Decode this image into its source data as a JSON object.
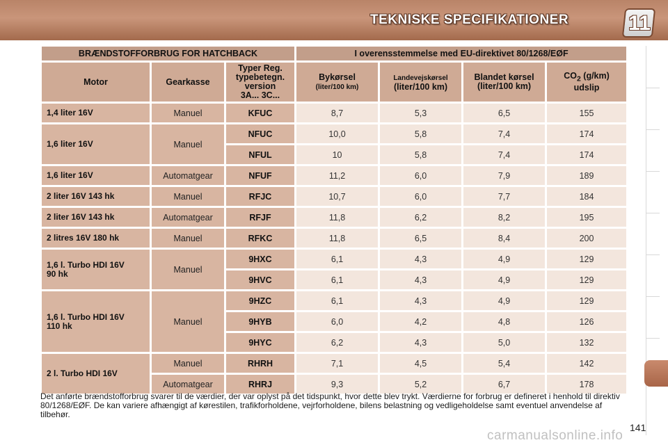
{
  "header": {
    "title": "TEKNISKE SPECIFIKATIONER",
    "chapter": "11"
  },
  "table": {
    "title_left": "BRÆNDSTOFFORBRUG FOR HATCHBACK",
    "title_right": "I overensstemmelse med EU-direktivet 80/1268/EØF",
    "col_motor": "Motor",
    "col_gear": "Gearkasse",
    "col_type": [
      "Typer Reg.",
      "typebetegn.",
      "version",
      "3A... 3C..."
    ],
    "col_city": "Bykørsel",
    "col_city_unit": "(liter/100 km)",
    "col_road": "Landevejskørsel",
    "col_road_unit": "(liter/100 km)",
    "col_mixed": "Blandet kørsel",
    "col_mixed_unit": "(liter/100 km)",
    "col_co2_a": "CO",
    "col_co2_sub": "2",
    "col_co2_b": " (g/km)",
    "col_co2_unit": "udslip",
    "groups": [
      {
        "motor": [
          "1,4 liter 16V"
        ],
        "gears": [
          {
            "label": "Manuel",
            "rows": [
              [
                "KFUC",
                "8,7",
                "5,3",
                "6,5",
                "155"
              ]
            ]
          }
        ]
      },
      {
        "motor": [
          "1,6 liter 16V"
        ],
        "gears": [
          {
            "label": "Manuel",
            "rows": [
              [
                "NFUC",
                "10,0",
                "5,8",
                "7,4",
                "174"
              ],
              [
                "NFUL",
                "10",
                "5,8",
                "7,4",
                "174"
              ]
            ]
          }
        ]
      },
      {
        "motor": [
          "1,6 liter 16V"
        ],
        "gears": [
          {
            "label": "Automatgear",
            "rows": [
              [
                "NFUF",
                "11,2",
                "6,0",
                "7,9",
                "189"
              ]
            ]
          }
        ]
      },
      {
        "motor": [
          "2 liter 16V 143 hk"
        ],
        "gears": [
          {
            "label": "Manuel",
            "rows": [
              [
                "RFJC",
                "10,7",
                "6,0",
                "7,7",
                "184"
              ]
            ]
          }
        ]
      },
      {
        "motor": [
          "2 liter 16V 143 hk"
        ],
        "gears": [
          {
            "label": "Automatgear",
            "rows": [
              [
                "RFJF",
                "11,8",
                "6,2",
                "8,2",
                "195"
              ]
            ]
          }
        ]
      },
      {
        "motor": [
          "2 litres 16V 180 hk"
        ],
        "gears": [
          {
            "label": "Manuel",
            "rows": [
              [
                "RFKC",
                "11,8",
                "6,5",
                "8,4",
                "200"
              ]
            ]
          }
        ]
      },
      {
        "motor": [
          "1,6 l. Turbo HDI 16V",
          "90 hk"
        ],
        "gears": [
          {
            "label": "Manuel",
            "rows": [
              [
                "9HXC",
                "6,1",
                "4,3",
                "4,9",
                "129"
              ],
              [
                "9HVC",
                "6,1",
                "4,3",
                "4,9",
                "129"
              ]
            ]
          }
        ]
      },
      {
        "motor": [
          "1,6 l. Turbo HDI 16V",
          "110 hk"
        ],
        "gears": [
          {
            "label": "Manuel",
            "rows": [
              [
                "9HZC",
                "6,1",
                "4,3",
                "4,9",
                "129"
              ],
              [
                "9HYB",
                "6,0",
                "4,2",
                "4,8",
                "126"
              ],
              [
                "9HYC",
                "6,2",
                "4,3",
                "5,0",
                "132"
              ]
            ]
          }
        ]
      },
      {
        "motor": [
          "2 l. Turbo HDI 16V"
        ],
        "gears": [
          {
            "label": "Manuel",
            "rows": [
              [
                "RHRH",
                "7,1",
                "4,5",
                "5,4",
                "142"
              ]
            ]
          },
          {
            "label": "Automatgear",
            "rows": [
              [
                "RHRJ",
                "9,3",
                "5,2",
                "6,7",
                "178"
              ]
            ]
          }
        ]
      }
    ]
  },
  "footnote": "Det anførte brændstofforbrug svarer til de værdier, der var oplyst på det tidspunkt, hvor dette blev trykt. Værdierne for forbrug er defineret i henhold til direktiv 80/1268/EØF. De kan variere afhængigt af kørestilen, trafikforholdene, vejrforholdene, bilens belastning og vedligeholdelse samt eventuel anvendelse af tilbehør.",
  "page_number": "141",
  "watermark": "carmanualsonline.info",
  "colors": {
    "header": "#c9957a",
    "cell_dark": "#d8b5a1",
    "cell_light": "#f3e6dd",
    "title_bar": "#c29e8a"
  }
}
